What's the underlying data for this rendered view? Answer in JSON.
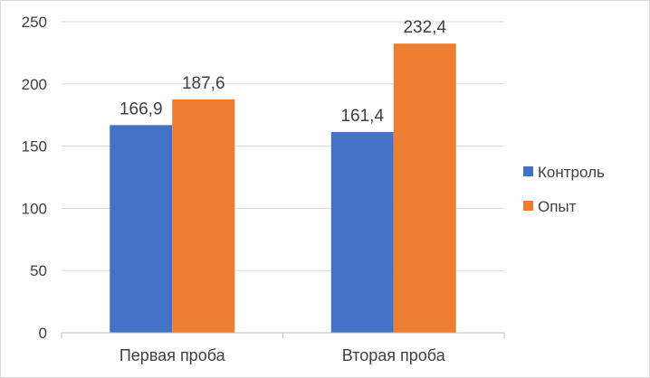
{
  "chart_data": {
    "type": "bar",
    "categories": [
      "Первая проба",
      "Вторая проба"
    ],
    "series": [
      {
        "name": "Контроль",
        "values": [
          166.9,
          161.4
        ],
        "labels": [
          "166,9",
          "161,4"
        ],
        "color": "#4472c4"
      },
      {
        "name": "Опыт",
        "values": [
          187.6,
          232.4
        ],
        "labels": [
          "187,6",
          "232,4"
        ],
        "color": "#ed7d31"
      }
    ],
    "ylim": [
      0,
      250
    ],
    "yticks": [
      0,
      50,
      100,
      150,
      200,
      250
    ],
    "grid": true,
    "legend": "right",
    "title": "",
    "xlabel": "",
    "ylabel": ""
  }
}
